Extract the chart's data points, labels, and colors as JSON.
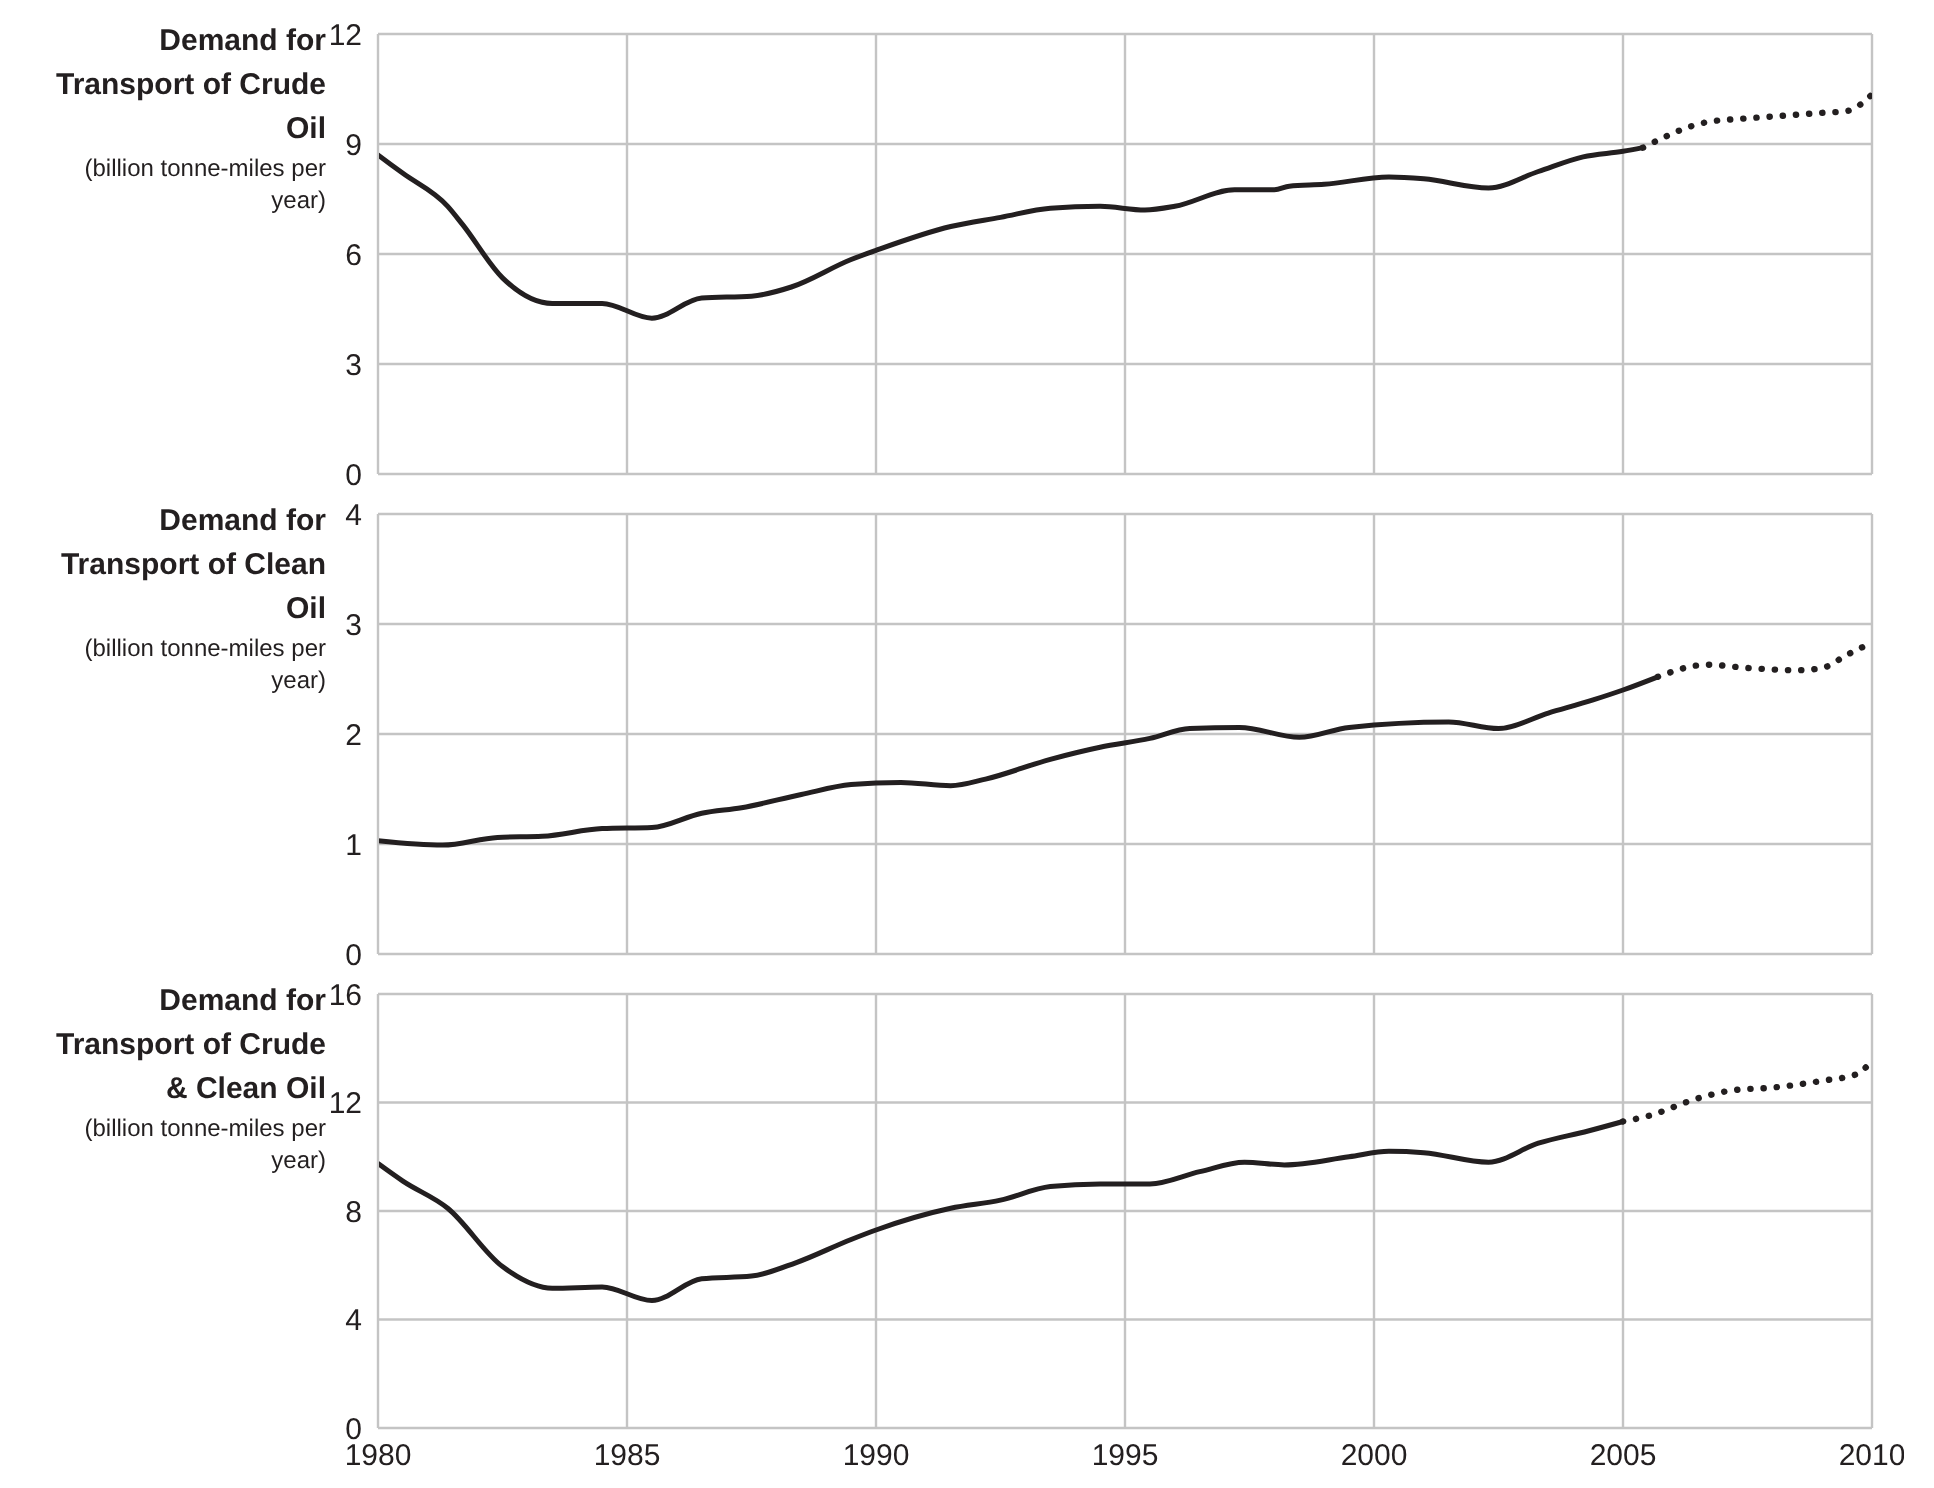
{
  "chart_data": [
    {
      "type": "line",
      "title": "Demand for Transport of Crude Oil",
      "ylabel": "(billion tonne-miles per year)",
      "xlim": [
        1980,
        2010
      ],
      "xticks": [
        1980,
        1985,
        1990,
        1995,
        2000,
        2005,
        2010
      ],
      "ylim": [
        0,
        12
      ],
      "yticks": [
        0,
        3,
        6,
        9,
        12
      ],
      "grid": true,
      "marker": "none",
      "tick_labels": "y",
      "series": [
        {
          "color": "#231f20",
          "line_style": "solid",
          "x": [
            1980,
            1980.5,
            1981.4,
            1981.7,
            1982.5,
            1983.5,
            1984.5,
            1985.5,
            1986.5,
            1987.5,
            1988.3,
            1989.5,
            1990,
            1991.5,
            1992.5,
            1993.5,
            1994.5,
            1995.4,
            1996,
            1997.2,
            1998,
            1998.3,
            1999,
            2000.3,
            2001,
            2002.3,
            2003.3,
            2004.2,
            2005,
            2005.4
          ],
          "values": [
            8.7,
            8.2,
            7.3,
            6.8,
            5.35,
            4.65,
            4.65,
            4.25,
            4.8,
            4.85,
            5.1,
            5.85,
            6.1,
            6.75,
            7.0,
            7.25,
            7.3,
            7.2,
            7.3,
            7.75,
            7.75,
            7.85,
            7.9,
            8.1,
            8.05,
            7.8,
            8.25,
            8.65,
            8.8,
            8.9
          ]
        },
        {
          "color": "#231f20",
          "line_style": "dotted",
          "x": [
            2005.4,
            2006.7,
            2007.5,
            2008,
            2009,
            2009.5,
            2010
          ],
          "values": [
            8.9,
            9.6,
            9.7,
            9.75,
            9.85,
            9.9,
            10.35
          ]
        }
      ]
    },
    {
      "type": "line",
      "title": "Demand for Transport of Clean Oil",
      "ylabel": "(billion tonne-miles per year)",
      "xlim": [
        1980,
        2010
      ],
      "xticks": [
        1980,
        1985,
        1990,
        1995,
        2000,
        2005,
        2010
      ],
      "ylim": [
        0,
        4
      ],
      "yticks": [
        0,
        1,
        2,
        3,
        4
      ],
      "grid": true,
      "marker": "none",
      "tick_labels": "y",
      "series": [
        {
          "color": "#231f20",
          "line_style": "solid",
          "x": [
            1980,
            1981.3,
            1982.4,
            1983.3,
            1984.5,
            1985.5,
            1986.5,
            1987.3,
            1988.5,
            1989.5,
            1990.5,
            1991.5,
            1992.2,
            1993.5,
            1994.5,
            1995.5,
            1996.3,
            1997.3,
            1998.5,
            1999.5,
            2001.5,
            2002.5,
            2003.5,
            2004.4,
            2005,
            2005.7
          ],
          "values": [
            1.03,
            0.99,
            1.06,
            1.07,
            1.14,
            1.15,
            1.28,
            1.33,
            1.45,
            1.54,
            1.56,
            1.53,
            1.59,
            1.77,
            1.88,
            1.96,
            2.05,
            2.06,
            1.97,
            2.06,
            2.11,
            2.05,
            2.19,
            2.31,
            2.4,
            2.52
          ]
        },
        {
          "color": "#231f20",
          "line_style": "dotted",
          "x": [
            2005.7,
            2006.7,
            2007.5,
            2008.5,
            2009,
            2009.5,
            2010
          ],
          "values": [
            2.52,
            2.63,
            2.6,
            2.58,
            2.6,
            2.72,
            2.83
          ]
        }
      ]
    },
    {
      "type": "line",
      "title": "Demand for Transport of Crude & Clean Oil",
      "ylabel": "(billion tonne-miles per year)",
      "xlim": [
        1980,
        2010
      ],
      "xticks": [
        1980,
        1985,
        1990,
        1995,
        2000,
        2005,
        2010
      ],
      "ylim": [
        0,
        16
      ],
      "yticks": [
        0,
        4,
        8,
        12,
        16
      ],
      "grid": true,
      "marker": "none",
      "series": [
        {
          "color": "#231f20",
          "line_style": "solid",
          "x": [
            1980,
            1980.5,
            1981.4,
            1982.5,
            1983.5,
            1984.5,
            1985.5,
            1986.5,
            1987.5,
            1988.4,
            1989.5,
            1990,
            1991.5,
            1992.5,
            1993.5,
            1994.5,
            1995.5,
            1996.5,
            1997.4,
            1998.2,
            1999.5,
            2000.3,
            2001,
            2002.3,
            2003.3,
            2004.3,
            2005
          ],
          "values": [
            9.75,
            9.1,
            8.1,
            5.95,
            5.15,
            5.2,
            4.7,
            5.5,
            5.6,
            6.1,
            6.95,
            7.3,
            8.1,
            8.4,
            8.9,
            9.0,
            9.0,
            9.45,
            9.8,
            9.7,
            10.0,
            10.2,
            10.15,
            9.8,
            10.5,
            10.95,
            11.3
          ]
        },
        {
          "color": "#231f20",
          "line_style": "dotted",
          "x": [
            2005,
            2005.5,
            2006.5,
            2007.2,
            2008,
            2009,
            2009.7,
            2010
          ],
          "values": [
            11.3,
            11.5,
            12.15,
            12.45,
            12.55,
            12.8,
            13.05,
            13.55
          ]
        }
      ]
    }
  ]
}
